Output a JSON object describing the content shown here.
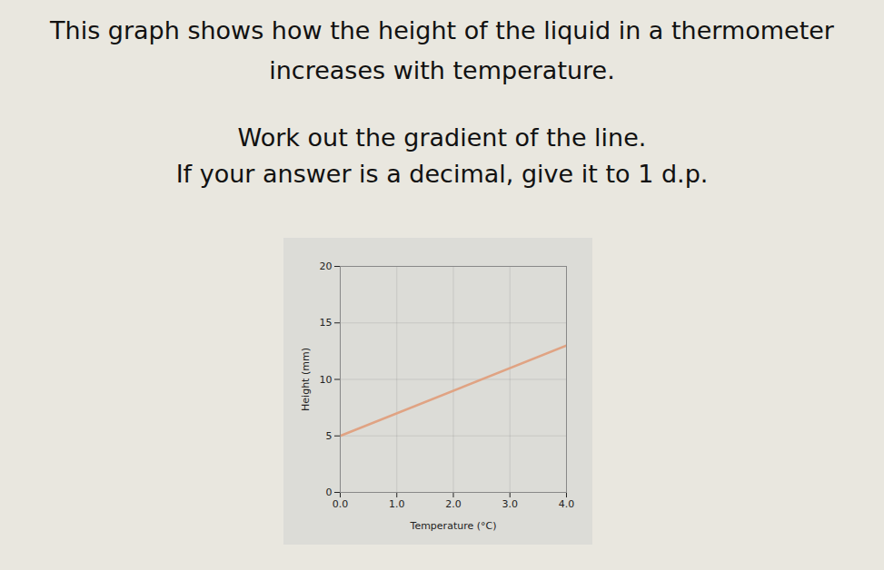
{
  "chart_data": {
    "type": "line",
    "title": "This graph shows how the height of the liquid in a thermometer increases with temperature.",
    "subtitle": [
      "Work out the gradient of the line.",
      "If your answer is a decimal, give it to 1 d.p."
    ],
    "x_label": "Temperature (°C)",
    "y_label": "Height (mm)",
    "x": [
      0,
      4
    ],
    "values": [
      5,
      13
    ],
    "color": "#e0a383",
    "xlim": [
      0,
      4
    ],
    "ylim": [
      0,
      20
    ],
    "xticks": [
      0,
      1,
      2,
      3,
      4
    ],
    "yticks": [
      0,
      5,
      10,
      15,
      20
    ],
    "grid": true
  }
}
